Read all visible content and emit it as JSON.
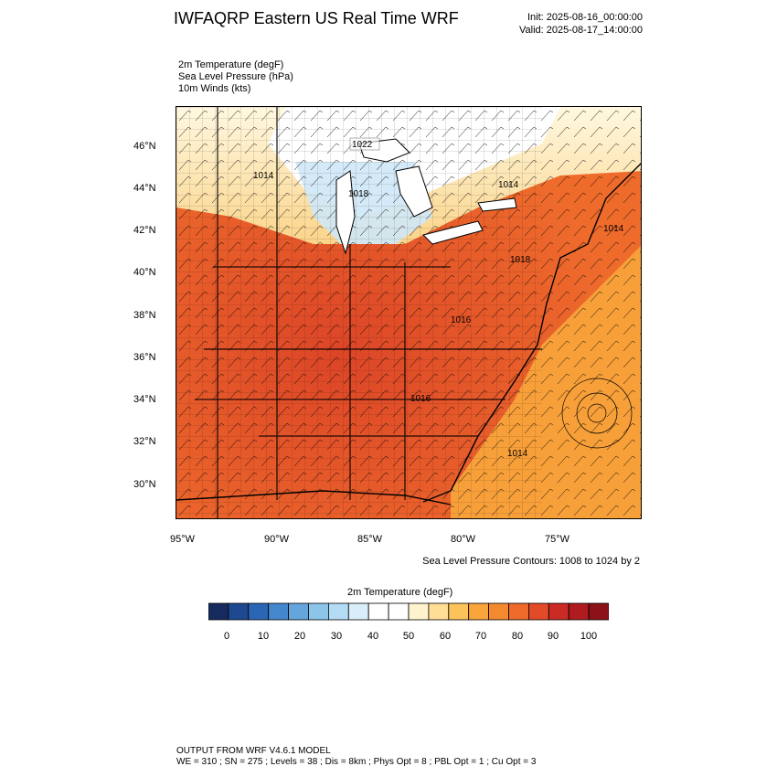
{
  "title": "IWFAQRP Eastern US Real Time WRF",
  "init": "Init: 2025-08-16_00:00:00",
  "valid": "Valid: 2025-08-17_14:00:00",
  "fields": [
    "2m Temperature   (degF)",
    "Sea Level Pressure   (hPa)",
    "10m Winds   (kts)"
  ],
  "lat_labels": [
    "46°N",
    "44°N",
    "42°N",
    "40°N",
    "38°N",
    "36°N",
    "34°N",
    "32°N",
    "30°N"
  ],
  "lon_labels": [
    "95°W",
    "90°W",
    "85°W",
    "80°W",
    "75°W"
  ],
  "contour_note": "Sea Level Pressure Contours: 1008 to 1024 by 2",
  "pressure_labels": [
    "1022",
    "1014",
    "1018",
    "1014",
    "1014",
    "1018",
    "1016",
    "1016",
    "1014"
  ],
  "colorbar": {
    "title": "2m Temperature  (degF)",
    "labels": [
      "0",
      "10",
      "20",
      "30",
      "40",
      "50",
      "60",
      "70",
      "80",
      "90",
      "100"
    ],
    "colors": [
      "#172a5e",
      "#1e4990",
      "#2b66b5",
      "#4487cc",
      "#64a5dc",
      "#8cc4ea",
      "#b4dcf4",
      "#d9eefa",
      "#ffffff",
      "#ffffff",
      "#fff2cc",
      "#fedf95",
      "#fcc35a",
      "#f9a53b",
      "#f48a30",
      "#ee6b2c",
      "#e34a28",
      "#cc2a24",
      "#b01b1f",
      "#8c1218"
    ]
  },
  "footer": {
    "line1": "OUTPUT FROM WRF V4.6.1 MODEL",
    "line2": "WE = 310 ; SN = 275 ; Levels = 38 ; Dis = 8km ; Phys Opt = 8 ; PBL Opt = 1 ; Cu Opt = 3"
  }
}
